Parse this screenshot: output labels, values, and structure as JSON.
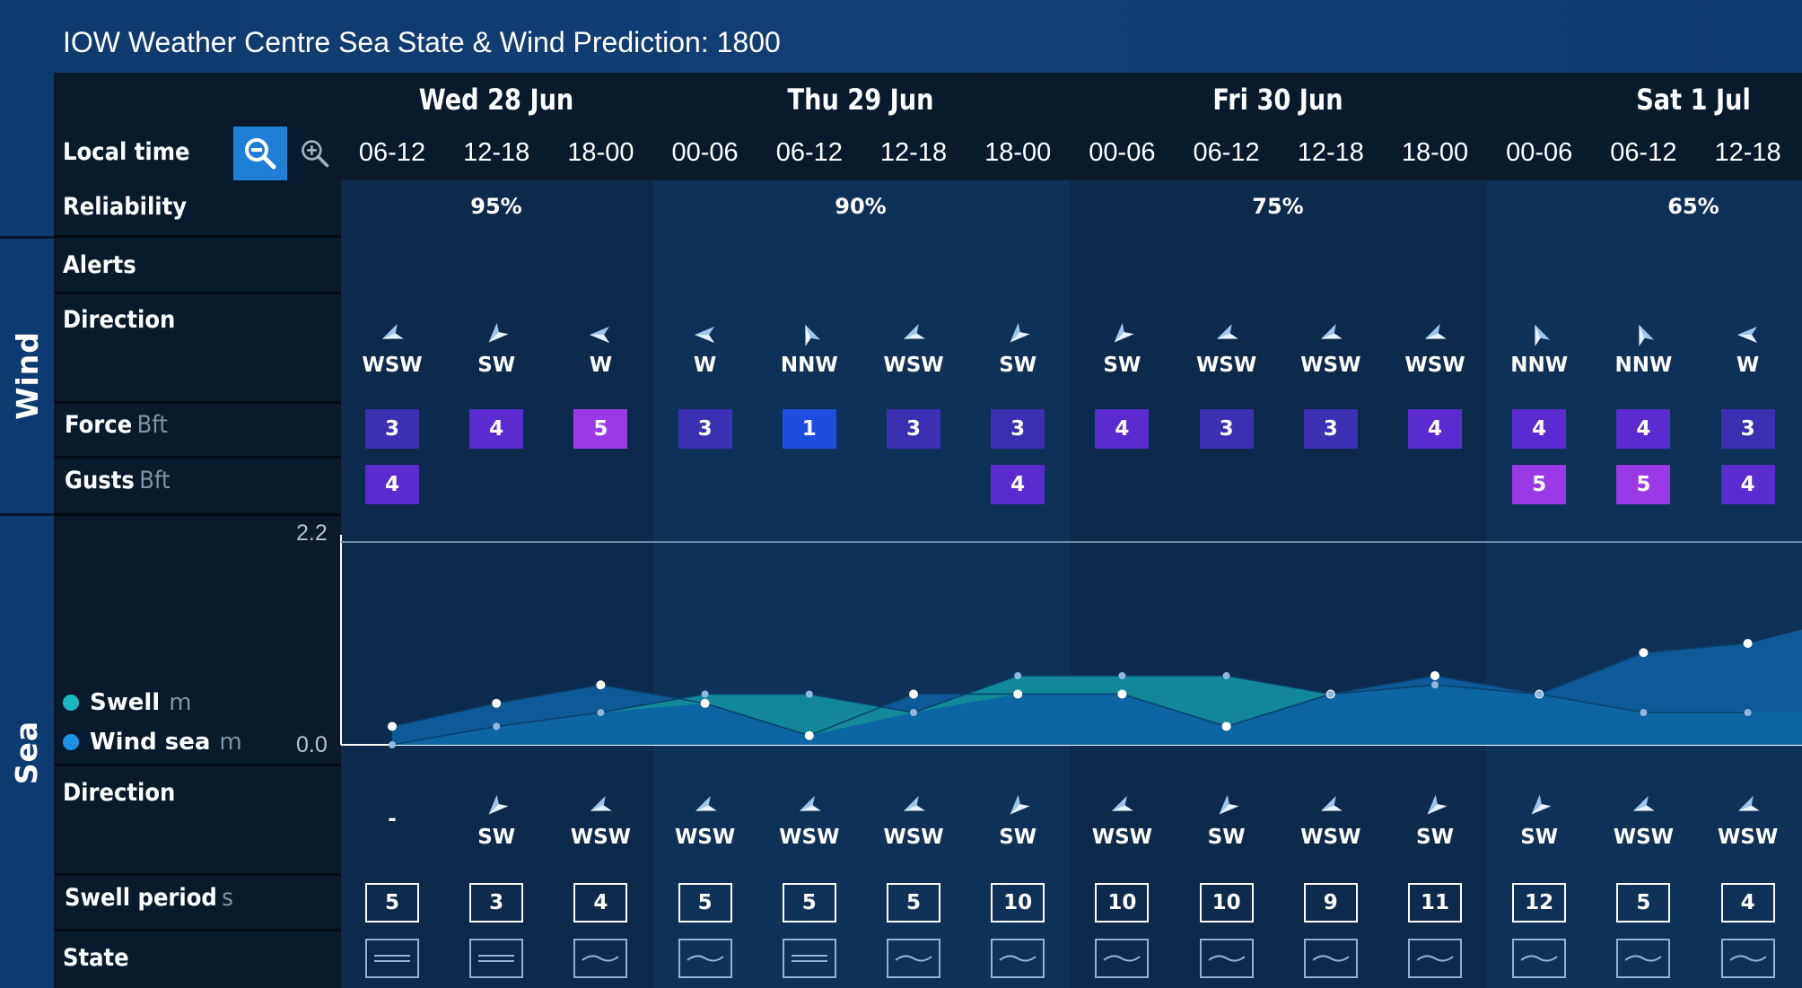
{
  "title": "IOW Weather Centre Sea State & Wind Prediction: 1800",
  "groups": {
    "wind": "Wind",
    "sea": "Sea"
  },
  "labels": {
    "local_time": "Local time",
    "reliability": "Reliability",
    "alerts": "Alerts",
    "direction": "Direction",
    "force": "Force",
    "force_unit": "Bft",
    "gusts": "Gusts",
    "gusts_unit": "Bft",
    "swell": "Swell",
    "swell_unit": "m",
    "wind_sea": "Wind sea",
    "wind_sea_unit": "m",
    "sea_direction": "Direction",
    "swell_period": "Swell period",
    "swell_period_unit": "s",
    "state": "State"
  },
  "toolbar": {
    "zoom_out_icon": "zoom-out-icon",
    "zoom_in_icon": "zoom-in-icon"
  },
  "days": [
    {
      "label": "Wed 28 Jun",
      "reliability": "95%"
    },
    {
      "label": "Thu 29 Jun",
      "reliability": "90%"
    },
    {
      "label": "Fri 30 Jun",
      "reliability": "75%"
    },
    {
      "label": "Sat 1 Jul",
      "reliability": "65%"
    }
  ],
  "periods": [
    {
      "time": "06-12",
      "wind_dir": "WSW",
      "force": 3,
      "gusts": 4,
      "swell": 0.0,
      "wind_sea": 0.2,
      "sea_dir": "-",
      "swell_period": 5,
      "state": "flat"
    },
    {
      "time": "12-18",
      "wind_dir": "SW",
      "force": 4,
      "gusts": null,
      "swell": 0.2,
      "wind_sea": 0.45,
      "sea_dir": "SW",
      "swell_period": 3,
      "state": "flat"
    },
    {
      "time": "18-00",
      "wind_dir": "W",
      "force": 5,
      "gusts": null,
      "swell": 0.35,
      "wind_sea": 0.65,
      "sea_dir": "WSW",
      "swell_period": 4,
      "state": "wave"
    },
    {
      "time": "00-06",
      "wind_dir": "W",
      "force": 3,
      "gusts": null,
      "swell": 0.55,
      "wind_sea": 0.45,
      "sea_dir": "WSW",
      "swell_period": 5,
      "state": "wave"
    },
    {
      "time": "06-12",
      "wind_dir": "NNW",
      "force": 1,
      "gusts": null,
      "swell": 0.55,
      "wind_sea": 0.1,
      "sea_dir": "WSW",
      "swell_period": 5,
      "state": "flat"
    },
    {
      "time": "12-18",
      "wind_dir": "WSW",
      "force": 3,
      "gusts": null,
      "swell": 0.35,
      "wind_sea": 0.55,
      "sea_dir": "WSW",
      "swell_period": 5,
      "state": "wave"
    },
    {
      "time": "18-00",
      "wind_dir": "SW",
      "force": 3,
      "gusts": 4,
      "swell": 0.75,
      "wind_sea": 0.55,
      "sea_dir": "SW",
      "swell_period": 10,
      "state": "wave"
    },
    {
      "time": "00-06",
      "wind_dir": "SW",
      "force": 4,
      "gusts": null,
      "swell": 0.75,
      "wind_sea": 0.55,
      "sea_dir": "WSW",
      "swell_period": 10,
      "state": "wave"
    },
    {
      "time": "06-12",
      "wind_dir": "WSW",
      "force": 3,
      "gusts": null,
      "swell": 0.75,
      "wind_sea": 0.2,
      "sea_dir": "SW",
      "swell_period": 10,
      "state": "wave"
    },
    {
      "time": "12-18",
      "wind_dir": "WSW",
      "force": 3,
      "gusts": null,
      "swell": 0.55,
      "wind_sea": 0.55,
      "sea_dir": "WSW",
      "swell_period": 9,
      "state": "wave"
    },
    {
      "time": "18-00",
      "wind_dir": "WSW",
      "force": 4,
      "gusts": null,
      "swell": 0.65,
      "wind_sea": 0.75,
      "sea_dir": "SW",
      "swell_period": 11,
      "state": "wave"
    },
    {
      "time": "00-06",
      "wind_dir": "NNW",
      "force": 4,
      "gusts": 5,
      "swell": 0.55,
      "wind_sea": 0.55,
      "sea_dir": "SW",
      "swell_period": 12,
      "state": "wave"
    },
    {
      "time": "06-12",
      "wind_dir": "NNW",
      "force": 4,
      "gusts": 5,
      "swell": 0.35,
      "wind_sea": 1.0,
      "sea_dir": "WSW",
      "swell_period": 5,
      "state": "wave"
    },
    {
      "time": "12-18",
      "wind_dir": "W",
      "force": 3,
      "gusts": 4,
      "swell": 0.35,
      "wind_sea": 1.1,
      "sea_dir": "WSW",
      "swell_period": 4,
      "state": "wave"
    }
  ],
  "chart_data": {
    "type": "area",
    "ylim": [
      0.0,
      2.2
    ],
    "y_ticks": [
      "2.2",
      "0.0"
    ],
    "categories": [
      "06-12",
      "12-18",
      "18-00",
      "00-06",
      "06-12",
      "12-18",
      "18-00",
      "00-06",
      "06-12",
      "12-18",
      "18-00",
      "00-06",
      "06-12",
      "12-18"
    ],
    "series": [
      {
        "name": "Swell",
        "color": "#17b8c4",
        "values": [
          0.0,
          0.2,
          0.35,
          0.55,
          0.55,
          0.35,
          0.75,
          0.75,
          0.75,
          0.55,
          0.65,
          0.55,
          0.35,
          0.35
        ]
      },
      {
        "name": "Wind sea",
        "color": "#1e90e6",
        "values": [
          0.2,
          0.45,
          0.65,
          0.45,
          0.1,
          0.55,
          0.55,
          0.55,
          0.2,
          0.55,
          0.75,
          0.55,
          1.0,
          1.1
        ]
      }
    ]
  },
  "colors": {
    "force": {
      "1": "#1f4de0",
      "2": "#2a3fd0",
      "3": "#3b2fb2",
      "4": "#5a2bcf",
      "5": "#9a3ae6"
    },
    "day_band_a": "#0e3157",
    "day_band_b": "#0b2a4c"
  }
}
